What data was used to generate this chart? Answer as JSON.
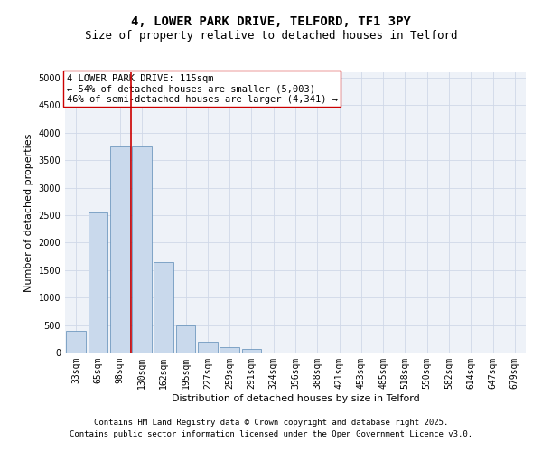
{
  "title_line1": "4, LOWER PARK DRIVE, TELFORD, TF1 3PY",
  "title_line2": "Size of property relative to detached houses in Telford",
  "xlabel": "Distribution of detached houses by size in Telford",
  "ylabel": "Number of detached properties",
  "categories": [
    "33sqm",
    "65sqm",
    "98sqm",
    "130sqm",
    "162sqm",
    "195sqm",
    "227sqm",
    "259sqm",
    "291sqm",
    "324sqm",
    "356sqm",
    "388sqm",
    "421sqm",
    "453sqm",
    "485sqm",
    "518sqm",
    "550sqm",
    "582sqm",
    "614sqm",
    "647sqm",
    "679sqm"
  ],
  "values": [
    400,
    2550,
    3750,
    3750,
    1650,
    500,
    200,
    100,
    60,
    0,
    0,
    0,
    0,
    0,
    0,
    0,
    0,
    0,
    0,
    0,
    0
  ],
  "bar_color": "#c9d9ec",
  "bar_edge_color": "#5a8ab5",
  "vline_color": "#cc0000",
  "vline_pos": 2.5,
  "annotation_text": "4 LOWER PARK DRIVE: 115sqm\n← 54% of detached houses are smaller (5,003)\n46% of semi-detached houses are larger (4,341) →",
  "annotation_box_color": "#ffffff",
  "annotation_box_edge": "#cc0000",
  "ylim": [
    0,
    5100
  ],
  "yticks": [
    0,
    500,
    1000,
    1500,
    2000,
    2500,
    3000,
    3500,
    4000,
    4500,
    5000
  ],
  "grid_color": "#d0d8e8",
  "bg_color": "#eef2f8",
  "footer_line1": "Contains HM Land Registry data © Crown copyright and database right 2025.",
  "footer_line2": "Contains public sector information licensed under the Open Government Licence v3.0.",
  "title_fontsize": 10,
  "subtitle_fontsize": 9,
  "axis_label_fontsize": 8,
  "tick_fontsize": 7,
  "annotation_fontsize": 7.5,
  "footer_fontsize": 6.5
}
